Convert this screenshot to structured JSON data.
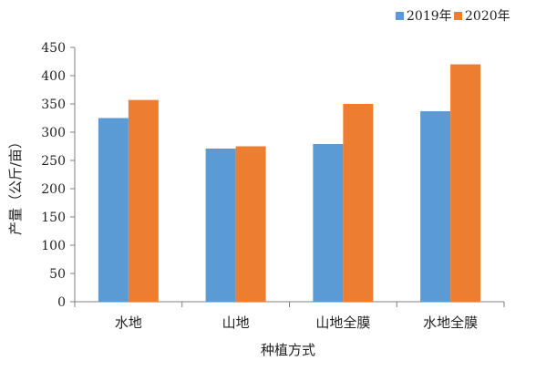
{
  "chart_data": {
    "type": "bar",
    "categories": [
      "水地",
      "山地",
      "山地全膜",
      "水地全膜"
    ],
    "series": [
      {
        "name": "2019年",
        "values": [
          325,
          271,
          279,
          337
        ],
        "color": "#5b9bd5"
      },
      {
        "name": "2020年",
        "values": [
          357,
          275,
          350,
          420
        ],
        "color": "#ed7d31"
      }
    ],
    "xlabel": "种植方式",
    "ylabel": "产量（公斤/亩）",
    "ylim": [
      0,
      450
    ],
    "yticks": [
      0,
      50,
      100,
      150,
      200,
      250,
      300,
      350,
      400,
      450
    ],
    "grid": false,
    "legend_position": "top-right"
  }
}
